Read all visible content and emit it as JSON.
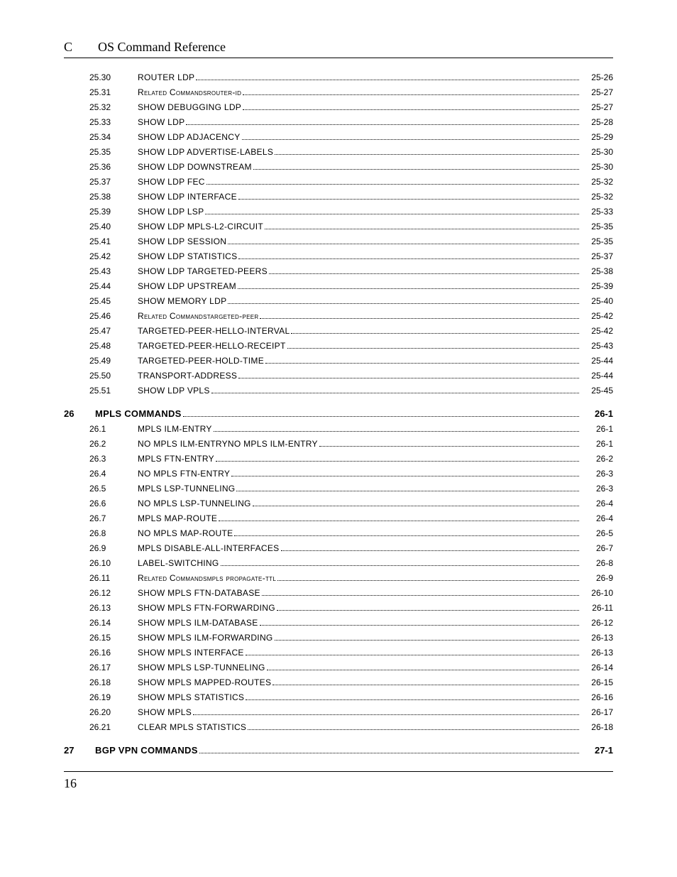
{
  "header": {
    "left": "C",
    "title": "OS Command Reference"
  },
  "footer": {
    "page": "16"
  },
  "toc": [
    {
      "num": "25.30",
      "name": "ROUTER LDP",
      "page": "25-26",
      "upper": true
    },
    {
      "num": "25.31",
      "name": "Related Commandsrouter-id",
      "page": "25-27",
      "smallcaps": true
    },
    {
      "num": "25.32",
      "name": "SHOW DEBUGGING LDP",
      "page": "25-27",
      "upper": true
    },
    {
      "num": "25.33",
      "name": "SHOW LDP",
      "page": "25-28",
      "upper": true
    },
    {
      "num": "25.34",
      "name": "SHOW LDP ADJACENCY",
      "page": "25-29",
      "upper": true
    },
    {
      "num": "25.35",
      "name": "SHOW LDP ADVERTISE-LABELS",
      "page": "25-30",
      "upper": true
    },
    {
      "num": "25.36",
      "name": "SHOW LDP DOWNSTREAM",
      "page": "25-30",
      "upper": true
    },
    {
      "num": "25.37",
      "name": "SHOW LDP FEC",
      "page": "25-32",
      "upper": true
    },
    {
      "num": "25.38",
      "name": "SHOW LDP INTERFACE",
      "page": "25-32",
      "upper": true
    },
    {
      "num": "25.39",
      "name": "SHOW LDP LSP",
      "page": "25-33",
      "upper": true
    },
    {
      "num": "25.40",
      "name": "SHOW LDP MPLS-L2-CIRCUIT",
      "page": "25-35",
      "upper": true
    },
    {
      "num": "25.41",
      "name": "SHOW LDP SESSION",
      "page": "25-35",
      "upper": true
    },
    {
      "num": "25.42",
      "name": "SHOW LDP STATISTICS",
      "page": "25-37",
      "upper": true
    },
    {
      "num": "25.43",
      "name": "SHOW LDP TARGETED-PEERS",
      "page": "25-38",
      "upper": true
    },
    {
      "num": "25.44",
      "name": "SHOW LDP UPSTREAM",
      "page": "25-39",
      "upper": true
    },
    {
      "num": "25.45",
      "name": "SHOW MEMORY LDP",
      "page": "25-40",
      "upper": true
    },
    {
      "num": "25.46",
      "name": "Related Commandstargeted-peer",
      "page": "25-42",
      "smallcaps": true
    },
    {
      "num": "25.47",
      "name": "TARGETED-PEER-HELLO-INTERVAL",
      "page": "25-42",
      "upper": true
    },
    {
      "num": "25.48",
      "name": "TARGETED-PEER-HELLO-RECEIPT",
      "page": "25-43",
      "upper": true
    },
    {
      "num": "25.49",
      "name": "TARGETED-PEER-HOLD-TIME",
      "page": "25-44",
      "upper": true
    },
    {
      "num": "25.50",
      "name": "TRANSPORT-ADDRESS",
      "page": "25-44",
      "upper": true
    },
    {
      "num": "25.51",
      "name": "SHOW LDP VPLS",
      "page": "25-45",
      "upper": true
    },
    {
      "num": "26",
      "name": "MPLS COMMANDS",
      "page": "26-1",
      "chapter": true
    },
    {
      "num": "26.1",
      "name": "MPLS ILM-ENTRY",
      "page": "26-1",
      "upper": true
    },
    {
      "num": "26.2",
      "name": "NO MPLS ILM-ENTRYNO MPLS ILM-ENTRY",
      "page": "26-1",
      "upper": true
    },
    {
      "num": "26.3",
      "name": "MPLS FTN-ENTRY",
      "page": "26-2",
      "upper": true
    },
    {
      "num": "26.4",
      "name": "NO MPLS FTN-ENTRY",
      "page": "26-3",
      "upper": true
    },
    {
      "num": "26.5",
      "name": "MPLS LSP-TUNNELING",
      "page": "26-3",
      "upper": true
    },
    {
      "num": "26.6",
      "name": "NO MPLS LSP-TUNNELING",
      "page": "26-4",
      "upper": true
    },
    {
      "num": "26.7",
      "name": "MPLS MAP-ROUTE",
      "page": "26-4",
      "upper": true
    },
    {
      "num": "26.8",
      "name": "NO MPLS MAP-ROUTE",
      "page": "26-5",
      "upper": true
    },
    {
      "num": "26.9",
      "name": "MPLS DISABLE-ALL-INTERFACES",
      "page": "26-7",
      "upper": true
    },
    {
      "num": "26.10",
      "name": "LABEL-SWITCHING",
      "page": "26-8",
      "upper": true
    },
    {
      "num": "26.11",
      "name": "Related Commandsmpls propagate-ttl",
      "page": "26-9",
      "smallcaps": true
    },
    {
      "num": "26.12",
      "name": "SHOW MPLS FTN-DATABASE",
      "page": "26-10",
      "upper": true
    },
    {
      "num": "26.13",
      "name": "SHOW MPLS FTN-FORWARDING",
      "page": "26-11",
      "upper": true
    },
    {
      "num": "26.14",
      "name": "SHOW MPLS ILM-DATABASE",
      "page": "26-12",
      "upper": true
    },
    {
      "num": "26.15",
      "name": "SHOW MPLS ILM-FORWARDING",
      "page": "26-13",
      "upper": true
    },
    {
      "num": "26.16",
      "name": "SHOW MPLS INTERFACE",
      "page": "26-13",
      "upper": true
    },
    {
      "num": "26.17",
      "name": "SHOW MPLS LSP-TUNNELING",
      "page": "26-14",
      "upper": true
    },
    {
      "num": "26.18",
      "name": "SHOW MPLS MAPPED-ROUTES",
      "page": "26-15",
      "upper": true
    },
    {
      "num": "26.19",
      "name": "SHOW MPLS STATISTICS",
      "page": "26-16",
      "upper": true
    },
    {
      "num": "26.20",
      "name": "SHOW MPLS",
      "page": "26-17",
      "upper": true
    },
    {
      "num": "26.21",
      "name": "CLEAR MPLS STATISTICS",
      "page": "26-18",
      "upper": true
    },
    {
      "num": "27",
      "name": "BGP VPN COMMANDS",
      "page": "27-1",
      "chapter": true
    }
  ]
}
